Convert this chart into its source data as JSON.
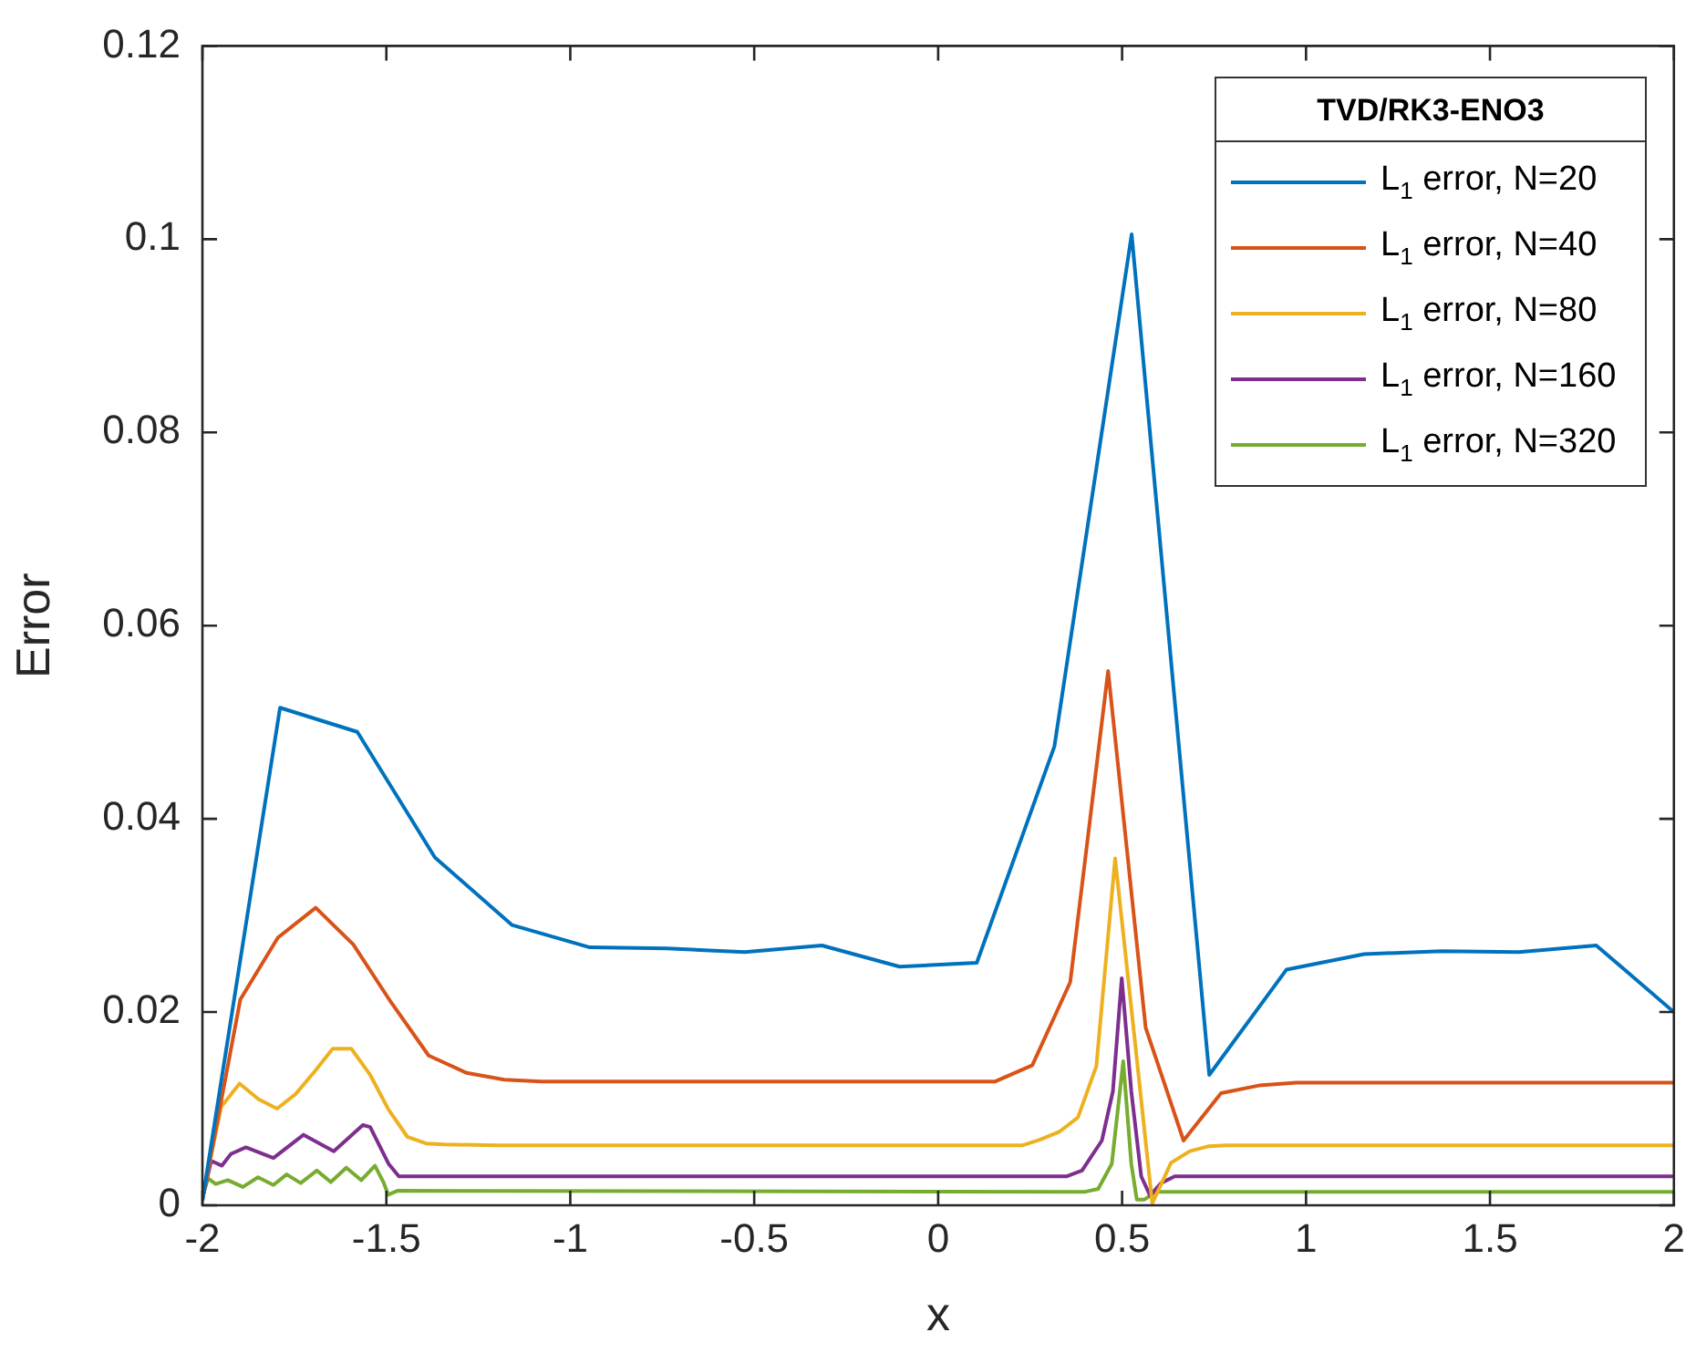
{
  "chart_data": {
    "type": "line",
    "xlabel": "x",
    "ylabel": "Error",
    "legend_title": "TVD/RK3-ENO3",
    "legend": "top right",
    "grid": false,
    "marker": "none",
    "line_style": "solid",
    "xlim": [
      -2,
      2
    ],
    "xticks": [
      -2,
      -1.5,
      -1,
      -0.5,
      0,
      0.5,
      1,
      1.5,
      2
    ],
    "ylim": [
      0,
      0.12
    ],
    "yticks": [
      0,
      0.02,
      0.04,
      0.06,
      0.08,
      0.1,
      0.12
    ],
    "series": [
      {
        "name": "L$_{1}$ error, N=20",
        "color": "#0072bd",
        "x": [
          -2,
          -1.789,
          -1.579,
          -1.368,
          -1.158,
          -0.947,
          -0.737,
          -0.526,
          -0.316,
          -0.105,
          0.105,
          0.316,
          0.526,
          0.737,
          0.947,
          1.158,
          1.368,
          1.579,
          1.789,
          2
        ],
        "values": [
          0.0005,
          0.0515,
          0.049,
          0.036,
          0.029,
          0.0267,
          0.0266,
          0.0262,
          0.0269,
          0.0247,
          0.0251,
          0.0475,
          0.1005,
          0.0135,
          0.0244,
          0.026,
          0.0263,
          0.0262,
          0.0269,
          0.02
        ]
      },
      {
        "name": "L$_{1}$ error, N=40",
        "color": "#d95319",
        "x": [
          -2,
          -1.897,
          -1.795,
          -1.692,
          -1.59,
          -1.487,
          -1.385,
          -1.282,
          -1.179,
          -1.077,
          0.154,
          0.256,
          0.359,
          0.462,
          0.564,
          0.667,
          0.769,
          0.872,
          0.974,
          2
        ],
        "values": [
          0.0005,
          0.0213,
          0.0277,
          0.0308,
          0.027,
          0.021,
          0.0155,
          0.0137,
          0.013,
          0.0128,
          0.0128,
          0.0145,
          0.0231,
          0.0553,
          0.0184,
          0.0067,
          0.0116,
          0.0124,
          0.0127,
          0.0127
        ]
      },
      {
        "name": "L$_{1}$ error, N=80",
        "color": "#edb120",
        "x": [
          -2,
          -1.949,
          -1.899,
          -1.848,
          -1.797,
          -1.747,
          -1.696,
          -1.646,
          -1.595,
          -1.544,
          -1.494,
          -1.443,
          -1.392,
          -1.342,
          -1.2,
          0.228,
          0.278,
          0.329,
          0.38,
          0.43,
          0.481,
          0.532,
          0.582,
          0.633,
          0.684,
          0.734,
          0.785,
          2
        ],
        "values": [
          0.0008,
          0.0102,
          0.0126,
          0.011,
          0.01,
          0.0115,
          0.0138,
          0.0162,
          0.0162,
          0.0135,
          0.0099,
          0.0071,
          0.0064,
          0.0063,
          0.0062,
          0.0062,
          0.0068,
          0.0076,
          0.0091,
          0.0144,
          0.0359,
          0.018,
          0.0002,
          0.0044,
          0.0056,
          0.0061,
          0.0062,
          0.0062
        ]
      },
      {
        "name": "L$_{1}$ error, N=160",
        "color": "#7e2f8e",
        "x": [
          -2,
          -1.976,
          -1.947,
          -1.923,
          -1.882,
          -1.807,
          -1.725,
          -1.643,
          -1.564,
          -1.544,
          -1.494,
          -1.466,
          0.35,
          0.391,
          0.445,
          0.475,
          0.499,
          0.525,
          0.552,
          0.576,
          0.606,
          0.643,
          2
        ],
        "values": [
          0.0008,
          0.0046,
          0.0041,
          0.0053,
          0.006,
          0.0049,
          0.0073,
          0.0056,
          0.0083,
          0.0081,
          0.0043,
          0.003,
          0.003,
          0.0036,
          0.0067,
          0.0118,
          0.0235,
          0.0118,
          0.003,
          0.001,
          0.0023,
          0.003,
          0.003
        ]
      },
      {
        "name": "L$_{1}$ error, N=320",
        "color": "#77ac30",
        "x": [
          -2,
          -1.985,
          -1.964,
          -1.931,
          -1.89,
          -1.849,
          -1.807,
          -1.771,
          -1.733,
          -1.689,
          -1.651,
          -1.609,
          -1.568,
          -1.531,
          -1.508,
          -1.495,
          -1.47,
          0.4,
          0.435,
          0.472,
          0.503,
          0.525,
          0.54,
          0.561,
          0.592,
          2
        ],
        "values": [
          0.0008,
          0.0028,
          0.0022,
          0.0026,
          0.0019,
          0.0029,
          0.0021,
          0.0032,
          0.0023,
          0.0036,
          0.0024,
          0.0039,
          0.0026,
          0.0041,
          0.0024,
          0.0011,
          0.0015,
          0.0014,
          0.0017,
          0.0043,
          0.0149,
          0.0043,
          0.0006,
          0.0006,
          0.0014,
          0.0014
        ]
      }
    ]
  }
}
